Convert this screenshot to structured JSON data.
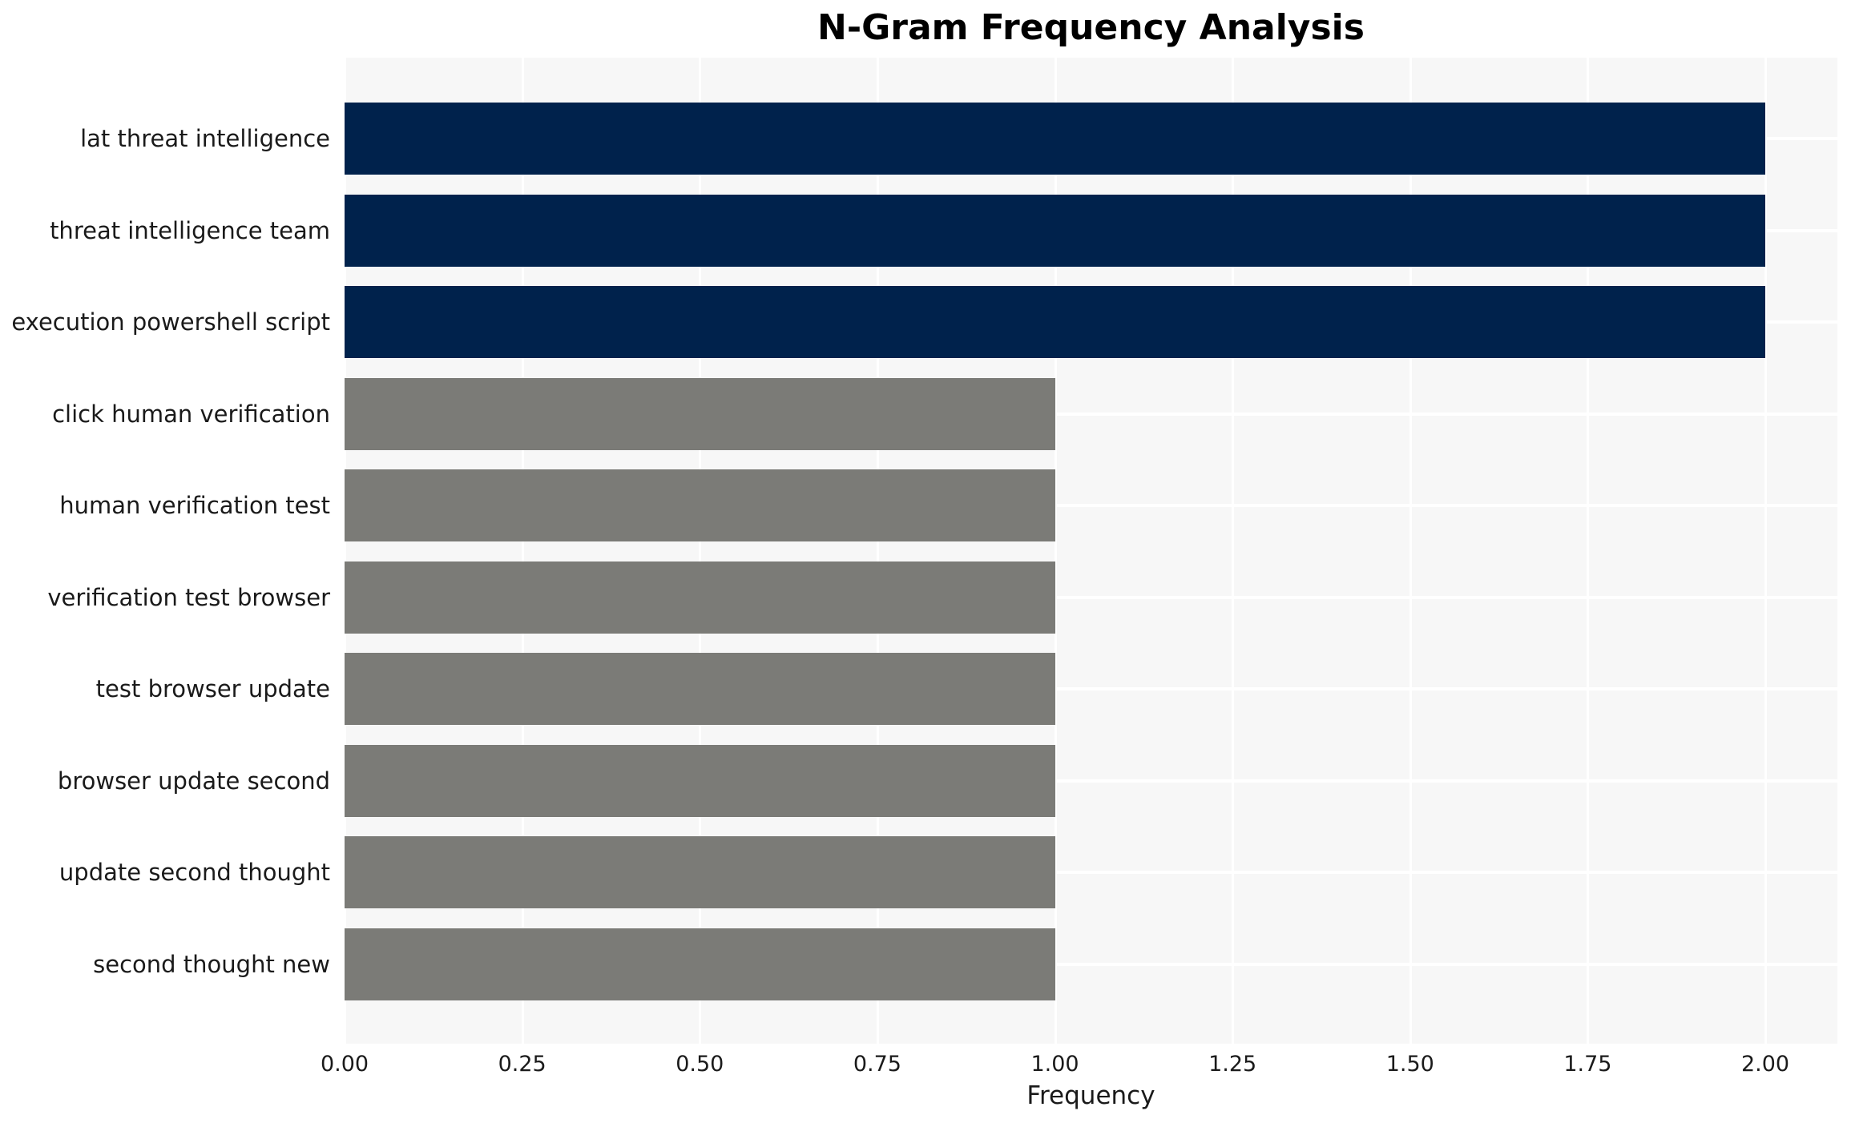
{
  "chart_data": {
    "type": "bar",
    "orientation": "horizontal",
    "title": "N-Gram Frequency Analysis",
    "xlabel": "Frequency",
    "ylabel": "",
    "categories": [
      "lat threat intelligence",
      "threat intelligence team",
      "execution powershell script",
      "click human verification",
      "human verification test",
      "verification test browser",
      "test browser update",
      "browser update second",
      "update second thought",
      "second thought new"
    ],
    "values": [
      2,
      2,
      2,
      1,
      1,
      1,
      1,
      1,
      1,
      1
    ],
    "bar_colors": [
      "#00224C",
      "#00224C",
      "#00224C",
      "#7B7B77",
      "#7B7B77",
      "#7B7B77",
      "#7B7B77",
      "#7B7B77",
      "#7B7B77",
      "#7B7B77"
    ],
    "xticks": [
      {
        "value": 0.0,
        "label": "0.00"
      },
      {
        "value": 0.25,
        "label": "0.25"
      },
      {
        "value": 0.5,
        "label": "0.50"
      },
      {
        "value": 0.75,
        "label": "0.75"
      },
      {
        "value": 1.0,
        "label": "1.00"
      },
      {
        "value": 1.25,
        "label": "1.25"
      },
      {
        "value": 1.5,
        "label": "1.50"
      },
      {
        "value": 1.75,
        "label": "1.75"
      },
      {
        "value": 2.0,
        "label": "2.00"
      }
    ],
    "xlim": [
      0,
      2.1
    ],
    "grid": true,
    "grid_color": "#ffffff",
    "legend": false
  },
  "colors": {
    "navy": "#00224C",
    "gray": "#7B7B77",
    "plot_background": "#F7F7F7",
    "figure_background": "#FFFFFF",
    "grid": "#FFFFFF",
    "text": "#1A1A1A",
    "title": "#000000"
  }
}
